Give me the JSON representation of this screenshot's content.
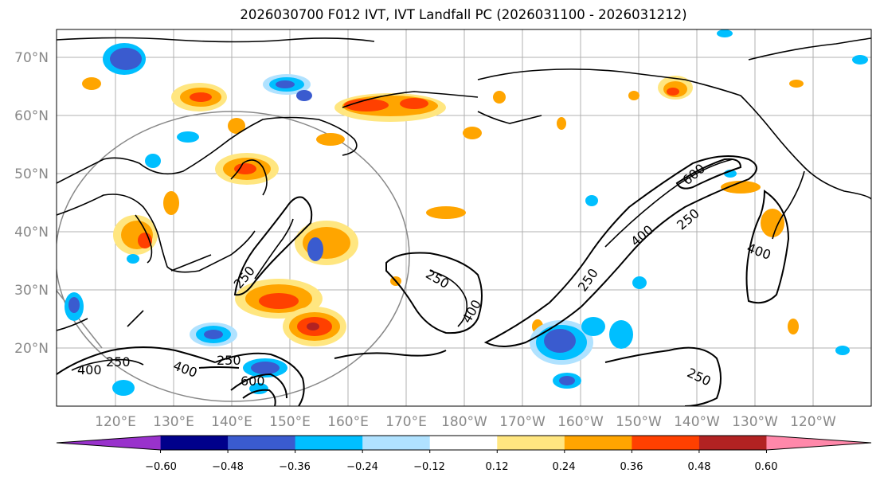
{
  "title": "2026030700 F012 IVT, IVT Landfall PC (2026031100 - 2026031212)",
  "latitude_labels": [
    "70°N",
    "60°N",
    "50°N",
    "40°N",
    "30°N",
    "20°N"
  ],
  "longitude_labels": [
    "120°E",
    "130°E",
    "140°E",
    "150°E",
    "160°E",
    "170°E",
    "180°W",
    "170°W",
    "160°W",
    "150°W",
    "140°W",
    "130°W",
    "120°W"
  ],
  "contour_labels": [
    "250",
    "400",
    "600"
  ],
  "colorbar": {
    "ticks": [
      "−0.60",
      "−0.48",
      "−0.36",
      "−0.24",
      "−0.12",
      "0.12",
      "0.24",
      "0.36",
      "0.48",
      "0.60"
    ],
    "colors": [
      "#9932cc",
      "#00008b",
      "#3a5bcf",
      "#00bfff",
      "#b0e2ff",
      "#ffffff",
      "#ffe680",
      "#ffa500",
      "#ff4000",
      "#b22222",
      "#ff88aa"
    ]
  }
}
